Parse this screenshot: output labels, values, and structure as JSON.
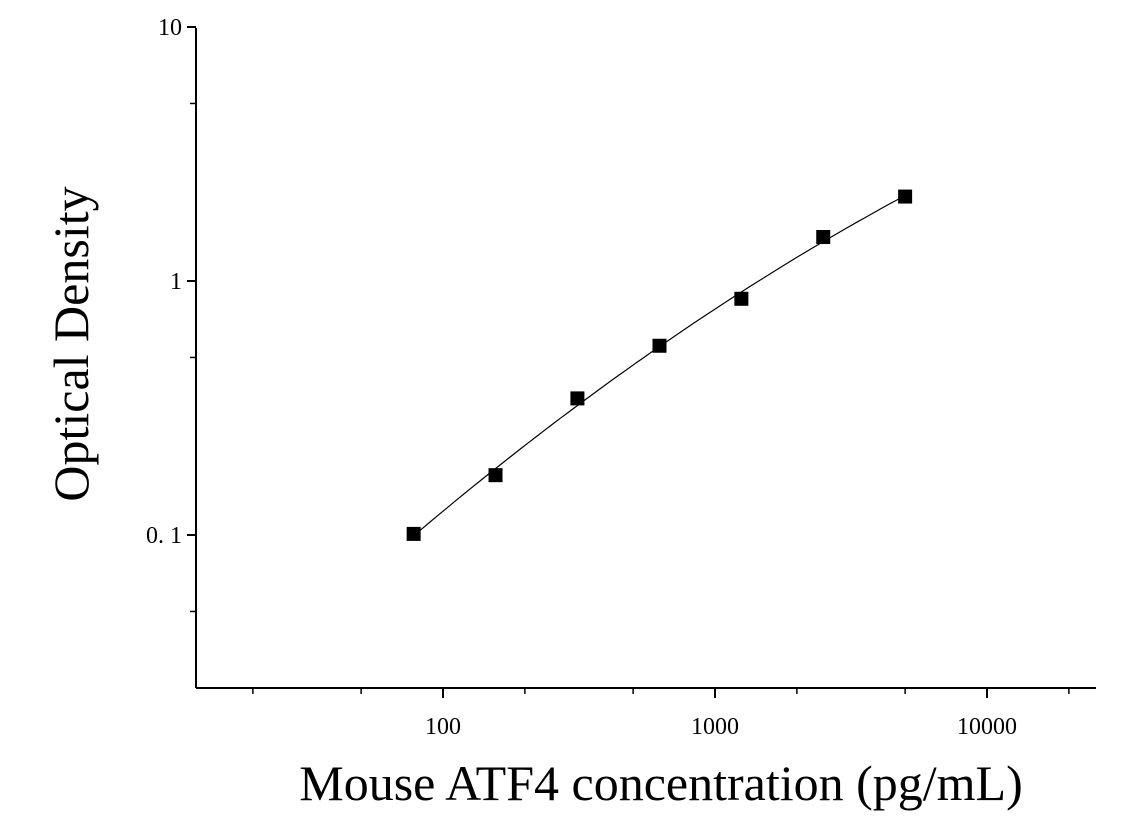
{
  "chart_data": {
    "type": "scatter",
    "title": "",
    "xlabel": "Mouse ATF4 concentration (pg/mL)",
    "ylabel": "Optical Density",
    "x_scale": "log",
    "y_scale": "log",
    "xlim": [
      10,
      25000
    ],
    "ylim": [
      0.025,
      10
    ],
    "x_ticks": [
      {
        "value": 100,
        "label": "100"
      },
      {
        "value": 1000,
        "label": "1000"
      },
      {
        "value": 10000,
        "label": "10000"
      }
    ],
    "y_ticks": [
      {
        "value": 0.1,
        "label": "0. 1"
      },
      {
        "value": 1,
        "label": "1"
      },
      {
        "value": 10,
        "label": "10"
      }
    ],
    "grid": false,
    "legend": "none",
    "series": [
      {
        "x": [
          78,
          156,
          312,
          625,
          1250,
          2500,
          5000
        ],
        "y": [
          0.101,
          0.172,
          0.345,
          0.556,
          0.851,
          1.49,
          2.15
        ],
        "marker": "square",
        "color": "#000000",
        "fit_line": true
      }
    ]
  }
}
